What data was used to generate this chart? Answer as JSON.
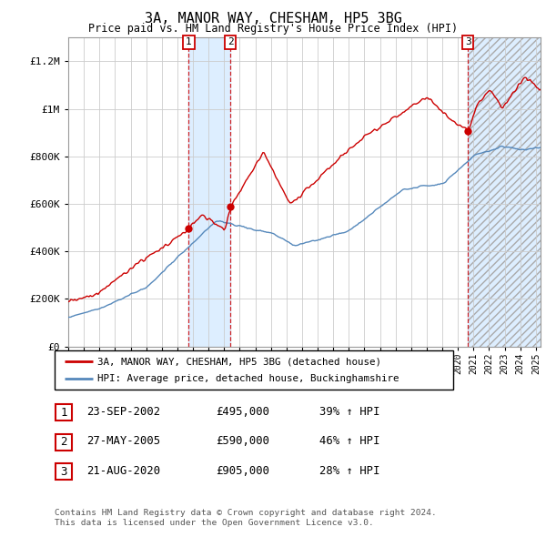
{
  "title": "3A, MANOR WAY, CHESHAM, HP5 3BG",
  "subtitle": "Price paid vs. HM Land Registry's House Price Index (HPI)",
  "ylim": [
    0,
    1300000
  ],
  "yticks": [
    0,
    200000,
    400000,
    600000,
    800000,
    1000000,
    1200000
  ],
  "ytick_labels": [
    "£0",
    "£200K",
    "£400K",
    "£600K",
    "£800K",
    "£1M",
    "£1.2M"
  ],
  "xlim_start": 1995.0,
  "xlim_end": 2025.3,
  "background_color": "#ffffff",
  "plot_bg_color": "#ffffff",
  "grid_color": "#cccccc",
  "sale_dates": [
    2002.728,
    2005.406,
    2020.644
  ],
  "sale_prices": [
    495000,
    590000,
    905000
  ],
  "sale_labels": [
    "1",
    "2",
    "3"
  ],
  "legend_line1": "3A, MANOR WAY, CHESHAM, HP5 3BG (detached house)",
  "legend_line2": "HPI: Average price, detached house, Buckinghamshire",
  "table_rows": [
    [
      "1",
      "23-SEP-2002",
      "£495,000",
      "39% ↑ HPI"
    ],
    [
      "2",
      "27-MAY-2005",
      "£590,000",
      "46% ↑ HPI"
    ],
    [
      "3",
      "21-AUG-2020",
      "£905,000",
      "28% ↑ HPI"
    ]
  ],
  "footnote1": "Contains HM Land Registry data © Crown copyright and database right 2024.",
  "footnote2": "This data is licensed under the Open Government Licence v3.0.",
  "red_line_color": "#cc0000",
  "blue_line_color": "#5588bb",
  "shade_color": "#ddeeff"
}
